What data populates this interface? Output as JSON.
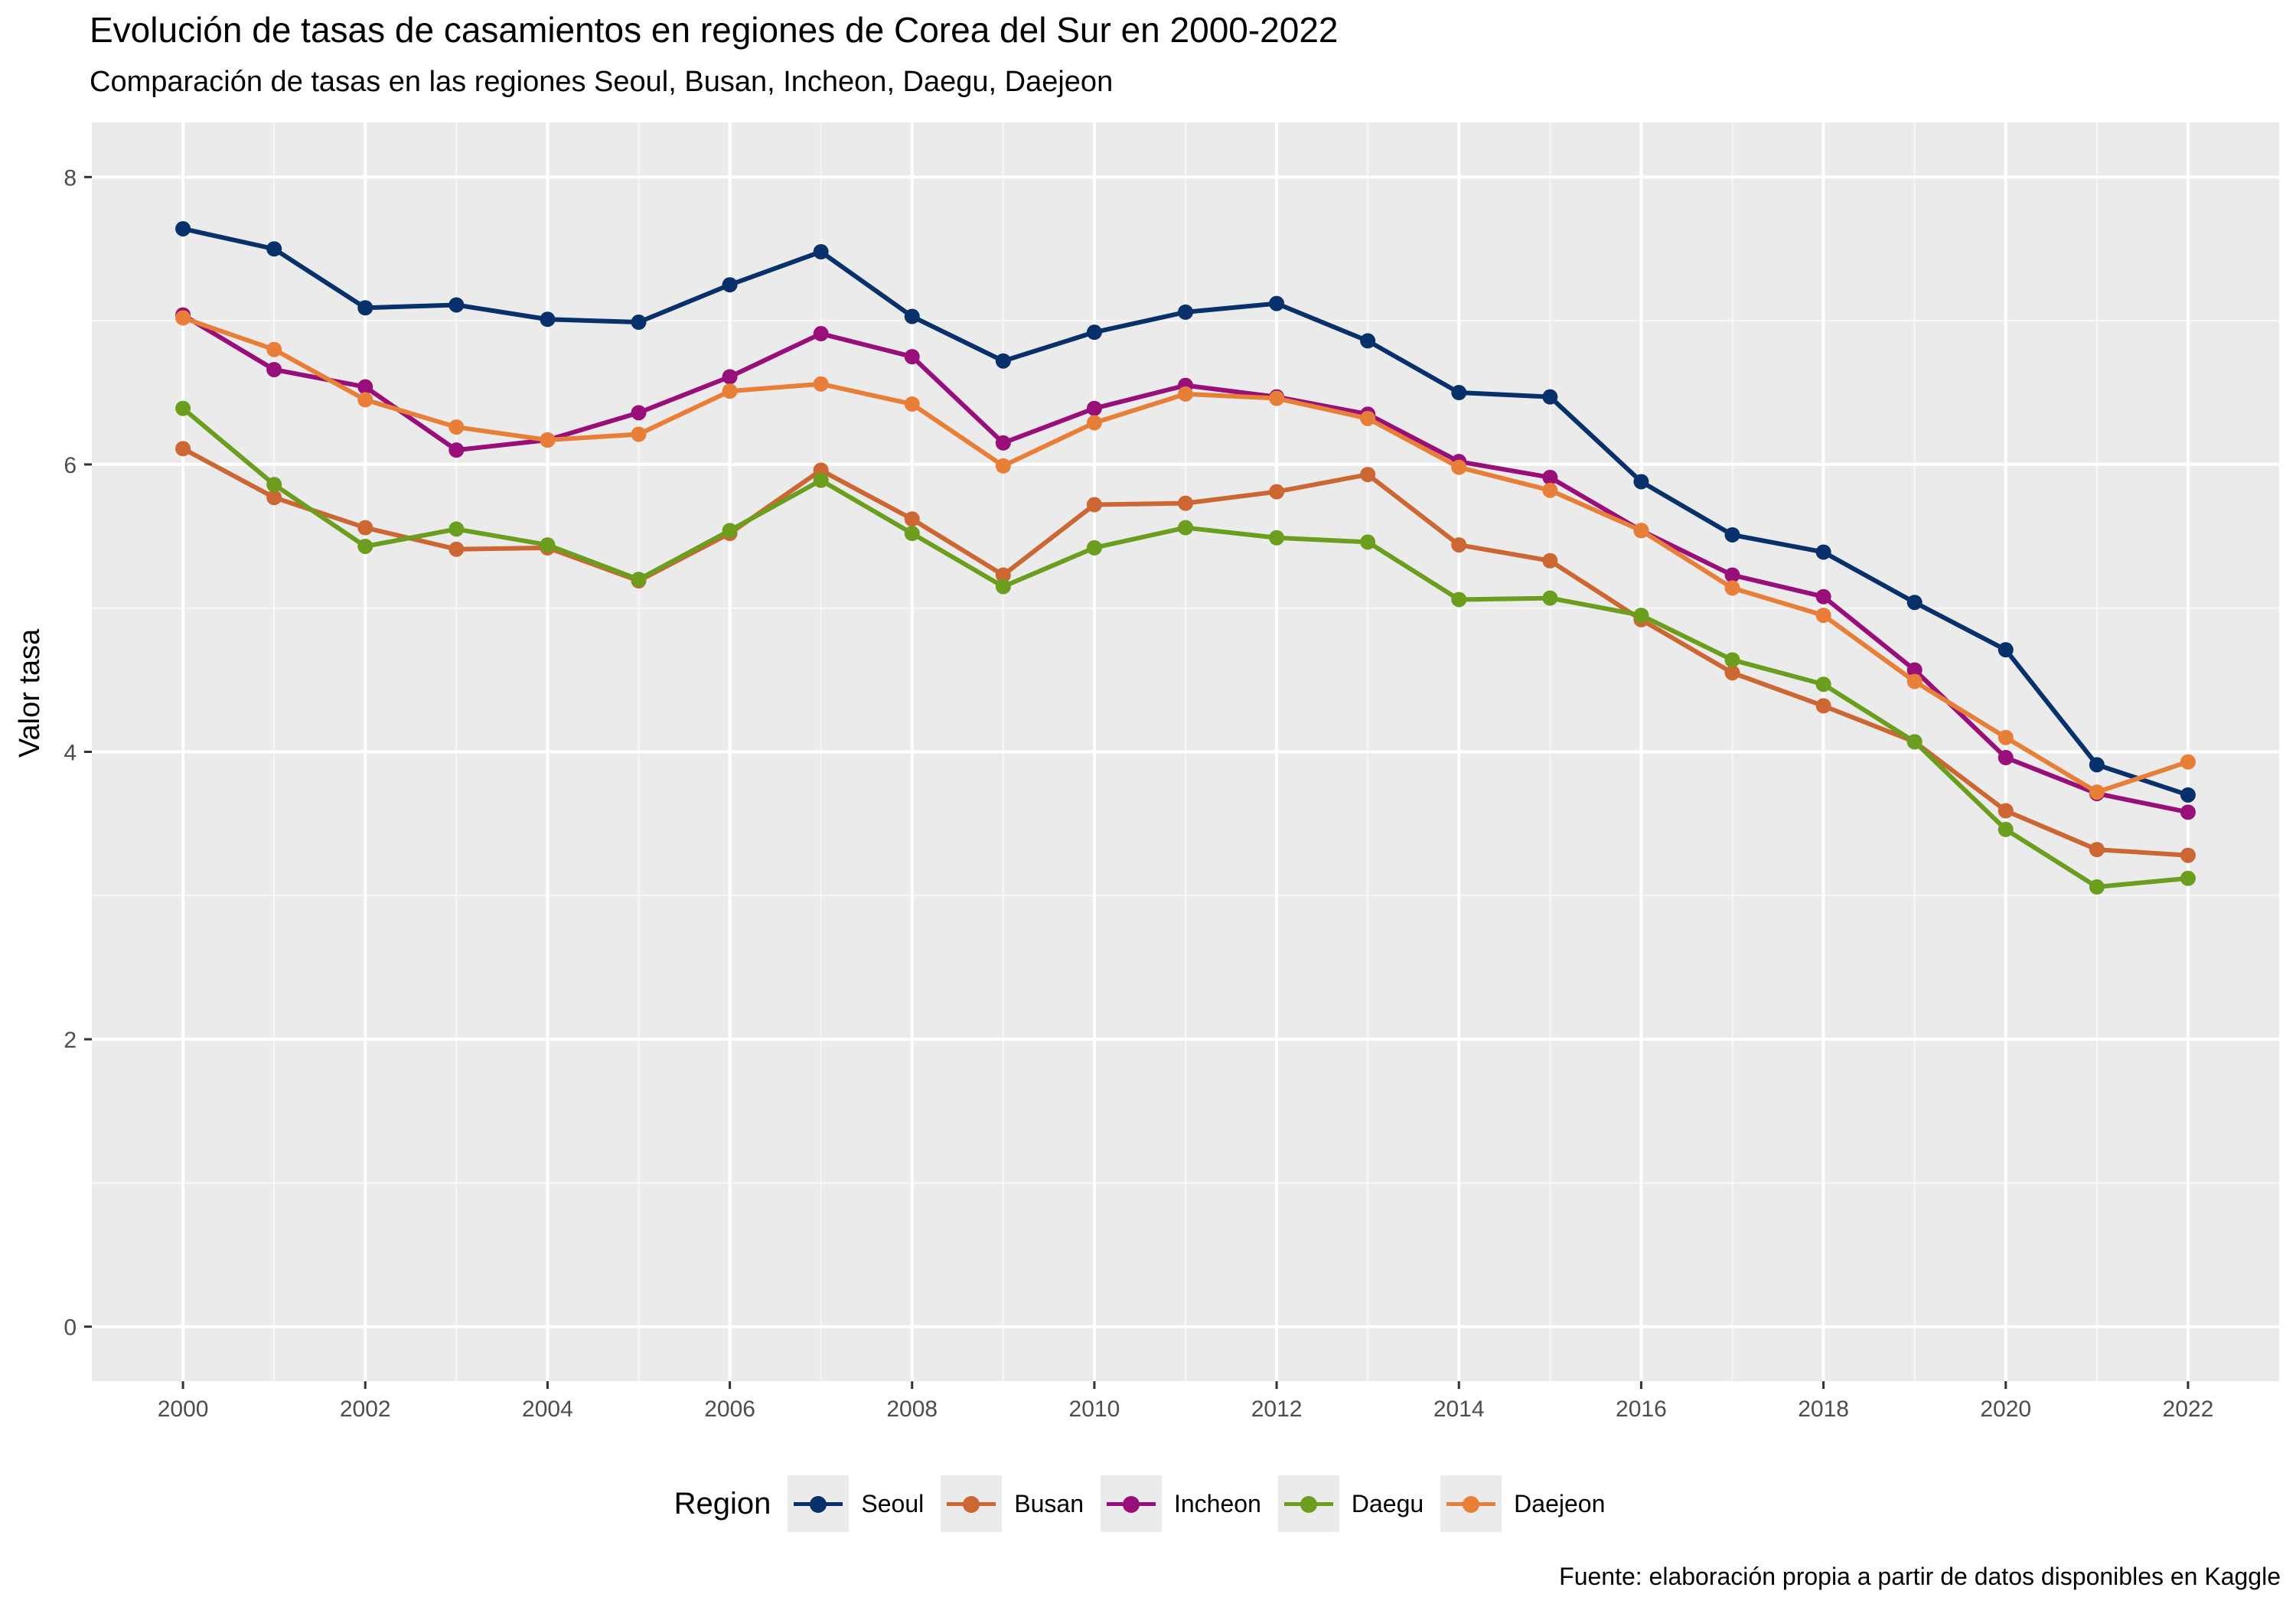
{
  "chart_data": {
    "type": "line",
    "title": "Evolución de tasas de casamientos en regiones de Corea del Sur en 2000-2022",
    "subtitle": "Comparación de  tasas en las regiones Seoul, Busan, Incheon, Daegu, Daejeon",
    "xlabel": "",
    "ylabel": "Valor tasa",
    "caption": "Fuente: elaboración propia a partir de datos disponibles en Kaggle",
    "x": [
      2000,
      2001,
      2002,
      2003,
      2004,
      2005,
      2006,
      2007,
      2008,
      2009,
      2010,
      2011,
      2012,
      2013,
      2014,
      2015,
      2016,
      2017,
      2018,
      2019,
      2020,
      2021,
      2022
    ],
    "xticks": [
      "2000",
      "2002",
      "2004",
      "2006",
      "2008",
      "2010",
      "2012",
      "2014",
      "2016",
      "2018",
      "2020",
      "2022"
    ],
    "yticks": [
      "0",
      "2",
      "4",
      "6",
      "8"
    ],
    "xlim": [
      1999,
      2023
    ],
    "ylim": [
      -0.38,
      8.38
    ],
    "grid": true,
    "legend_title": "Region",
    "legend_position": "bottom",
    "series": [
      {
        "name": "Seoul",
        "color": "#08306b",
        "values": [
          7.64,
          7.5,
          7.09,
          7.11,
          7.01,
          6.99,
          7.25,
          7.48,
          7.03,
          6.72,
          6.92,
          7.06,
          7.12,
          6.86,
          6.5,
          6.47,
          5.88,
          5.51,
          5.39,
          5.04,
          4.71,
          3.91,
          3.7
        ]
      },
      {
        "name": "Busan",
        "color": "#cc6633",
        "values": [
          6.11,
          5.77,
          5.56,
          5.41,
          5.42,
          5.19,
          5.52,
          5.96,
          5.62,
          5.23,
          5.72,
          5.73,
          5.81,
          5.93,
          5.44,
          5.33,
          4.92,
          4.55,
          4.32,
          4.07,
          3.59,
          3.32,
          3.28
        ]
      },
      {
        "name": "Incheon",
        "color": "#990f7a",
        "values": [
          7.04,
          6.66,
          6.54,
          6.1,
          6.17,
          6.36,
          6.61,
          6.91,
          6.75,
          6.15,
          6.39,
          6.55,
          6.47,
          6.35,
          6.02,
          5.91,
          5.54,
          5.23,
          5.08,
          4.57,
          3.96,
          3.71,
          3.58
        ]
      },
      {
        "name": "Daegu",
        "color": "#6b9e1f",
        "values": [
          6.39,
          5.86,
          5.43,
          5.55,
          5.44,
          5.2,
          5.54,
          5.89,
          5.52,
          5.15,
          5.42,
          5.56,
          5.49,
          5.46,
          5.06,
          5.07,
          4.95,
          4.64,
          4.47,
          4.07,
          3.46,
          3.06,
          3.12
        ]
      },
      {
        "name": "Daejeon",
        "color": "#e87f38",
        "values": [
          7.02,
          6.8,
          6.45,
          6.26,
          6.17,
          6.21,
          6.51,
          6.56,
          6.42,
          5.99,
          6.29,
          6.49,
          6.46,
          6.32,
          5.98,
          5.82,
          5.54,
          5.14,
          4.95,
          4.49,
          4.1,
          3.72,
          3.93
        ]
      }
    ]
  }
}
